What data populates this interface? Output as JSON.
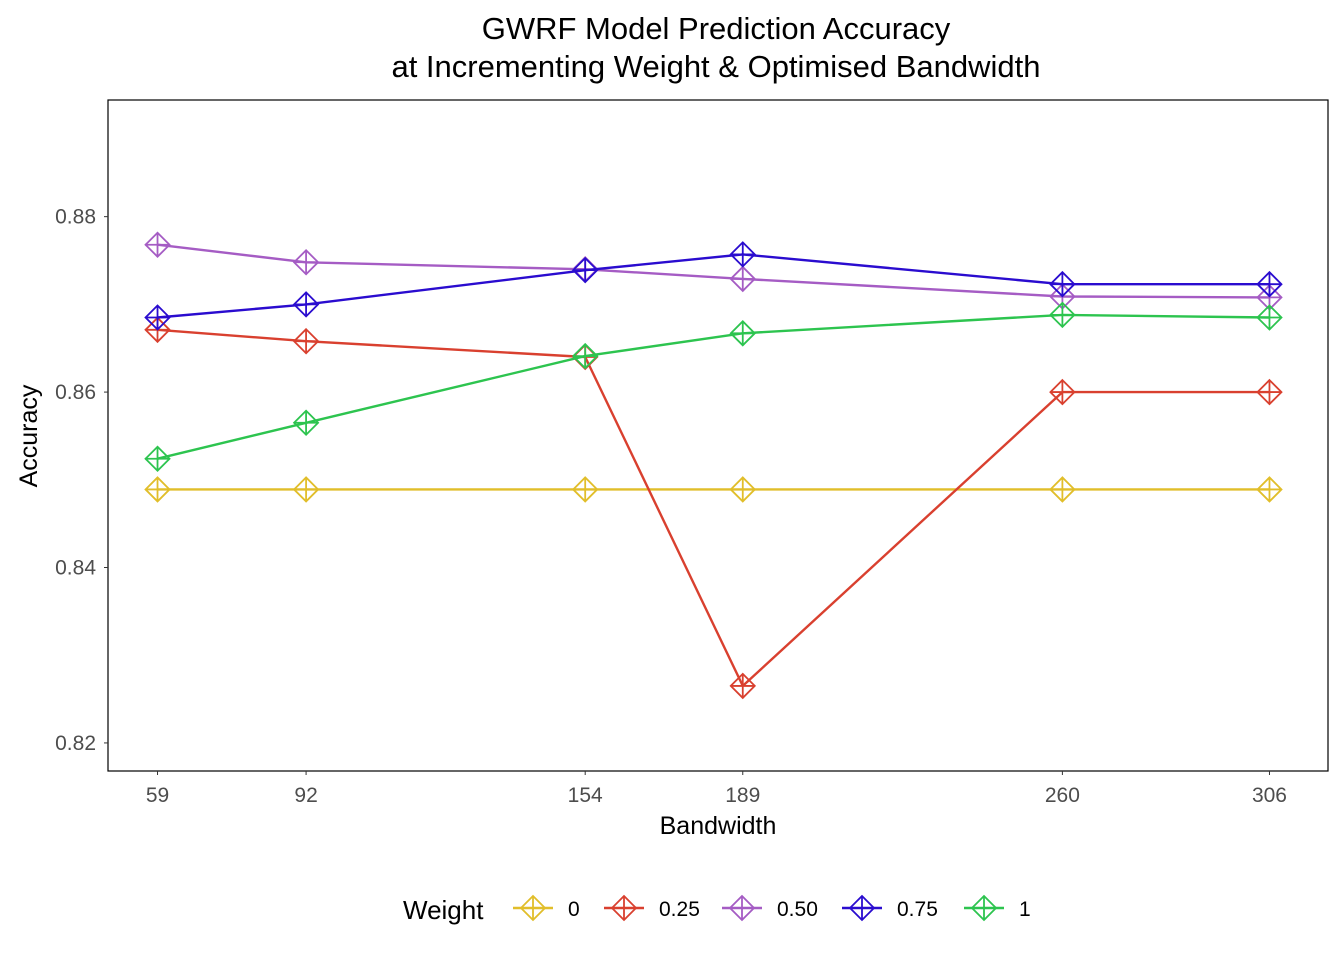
{
  "chart_data": {
    "type": "line",
    "title": [
      "GWRF Model Prediction Accuracy",
      "at Incrementing Weight & Optimised Bandwidth"
    ],
    "xlabel": "Bandwidth",
    "ylabel": "Accuracy",
    "x": [
      59,
      92,
      154,
      189,
      260,
      306
    ],
    "x_tick_labels": [
      "59",
      "92",
      "154",
      "189",
      "260",
      "306"
    ],
    "y_ticks": [
      0.82,
      0.84,
      0.86,
      0.88
    ],
    "y_tick_labels": [
      "0.82",
      "0.84",
      "0.86",
      "0.88"
    ],
    "xlim": [
      48,
      319
    ],
    "ylim": [
      0.8168,
      0.8933
    ],
    "grid": false,
    "legend_title": "Weight",
    "legend_position": "bottom",
    "marker": "diamond-plus",
    "series": [
      {
        "name": "0",
        "color": "#E1BE2A",
        "values": [
          0.8489,
          0.8489,
          0.8489,
          0.8489,
          0.8489,
          0.8489
        ]
      },
      {
        "name": "0.25",
        "color": "#D9402F",
        "values": [
          0.8671,
          0.8658,
          0.864,
          0.8265,
          0.86,
          0.86
        ]
      },
      {
        "name": "0.50",
        "color": "#A55CC4",
        "values": [
          0.8768,
          0.8748,
          0.874,
          0.8729,
          0.8709,
          0.8708
        ]
      },
      {
        "name": "0.75",
        "color": "#2A0CCF",
        "values": [
          0.8685,
          0.87,
          0.8739,
          0.8757,
          0.8723,
          0.8723
        ]
      },
      {
        "name": "1",
        "color": "#2DC44F",
        "values": [
          0.8524,
          0.8565,
          0.8641,
          0.8667,
          0.8688,
          0.8685
        ]
      }
    ]
  }
}
